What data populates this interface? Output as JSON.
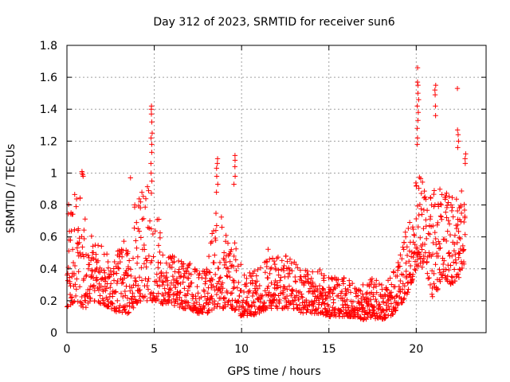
{
  "chart_data": {
    "type": "scatter",
    "title": "Day 312 of 2023, SRMTID for receiver sun6",
    "xlabel": "GPS time / hours",
    "ylabel": "SRMTID / TECUs",
    "xlim": [
      0,
      24
    ],
    "ylim": [
      0,
      1.8
    ],
    "x_ticks": [
      0,
      5,
      10,
      15,
      20
    ],
    "y_ticks": [
      0,
      0.2,
      0.4,
      0.6,
      0.8,
      1,
      1.2,
      1.4,
      1.6,
      1.8
    ],
    "x_tick_labels": [
      "0",
      "5",
      "10",
      "15",
      "20"
    ],
    "y_tick_labels": [
      "0",
      "0.2",
      "0.4",
      "0.6",
      "0.8",
      "1",
      "1.2",
      "1.4",
      "1.6",
      "1.8"
    ],
    "grid": true,
    "marker": "+",
    "color": "#ff0000",
    "envelope_hours": [
      0,
      0.5,
      1,
      1.5,
      2,
      2.5,
      3,
      3.5,
      4,
      4.5,
      5,
      5.5,
      6,
      6.5,
      7,
      7.5,
      8,
      8.5,
      9,
      9.5,
      10,
      10.5,
      11,
      11.5,
      12,
      12.5,
      13,
      13.5,
      14,
      14.5,
      15,
      15.5,
      16,
      16.5,
      17,
      17.5,
      18,
      18.5,
      19,
      19.5,
      20,
      20.5,
      21,
      21.5,
      22,
      22.5,
      22.8
    ],
    "envelope_low": [
      0.15,
      0.2,
      0.15,
      0.2,
      0.18,
      0.15,
      0.12,
      0.12,
      0.18,
      0.2,
      0.2,
      0.18,
      0.18,
      0.15,
      0.15,
      0.12,
      0.12,
      0.15,
      0.15,
      0.15,
      0.1,
      0.1,
      0.12,
      0.15,
      0.15,
      0.15,
      0.15,
      0.12,
      0.12,
      0.12,
      0.1,
      0.1,
      0.1,
      0.1,
      0.08,
      0.08,
      0.08,
      0.1,
      0.15,
      0.25,
      0.4,
      0.4,
      0.2,
      0.35,
      0.3,
      0.35,
      0.45
    ],
    "envelope_high": [
      0.85,
      0.95,
      0.75,
      0.6,
      0.55,
      0.45,
      0.55,
      0.65,
      0.85,
      0.95,
      0.9,
      0.55,
      0.5,
      0.45,
      0.45,
      0.4,
      0.4,
      0.8,
      0.7,
      0.6,
      0.45,
      0.4,
      0.4,
      0.55,
      0.5,
      0.5,
      0.45,
      0.4,
      0.4,
      0.4,
      0.35,
      0.35,
      0.35,
      0.3,
      0.3,
      0.35,
      0.3,
      0.35,
      0.45,
      0.7,
      1.0,
      0.95,
      0.9,
      0.9,
      0.85,
      0.9,
      0.95
    ],
    "spikes": [
      {
        "hour": 4.85,
        "values": [
          1.42,
          1.4,
          1.37,
          1.32,
          1.25,
          1.22,
          1.18,
          1.13,
          1.06,
          1.0,
          0.95
        ]
      },
      {
        "hour": 0.9,
        "values": [
          1.01,
          1.0,
          0.99,
          0.98
        ]
      },
      {
        "hour": 3.6,
        "values": [
          0.97
        ]
      },
      {
        "hour": 8.6,
        "values": [
          1.09,
          1.06,
          1.03,
          0.98,
          0.93,
          0.88
        ]
      },
      {
        "hour": 9.6,
        "values": [
          1.11,
          1.08,
          1.04,
          0.98,
          0.93
        ]
      },
      {
        "hour": 20.1,
        "values": [
          1.66,
          1.57,
          1.55,
          1.5,
          1.46,
          1.42,
          1.38,
          1.33,
          1.28,
          1.22,
          1.18
        ]
      },
      {
        "hour": 21.1,
        "values": [
          1.55,
          1.52,
          1.49,
          1.42,
          1.36
        ]
      },
      {
        "hour": 22.35,
        "values": [
          1.53
        ]
      },
      {
        "hour": 22.4,
        "values": [
          1.27,
          1.24,
          1.2,
          1.16
        ]
      },
      {
        "hour": 22.8,
        "values": [
          1.12,
          1.09,
          1.06
        ]
      }
    ]
  }
}
